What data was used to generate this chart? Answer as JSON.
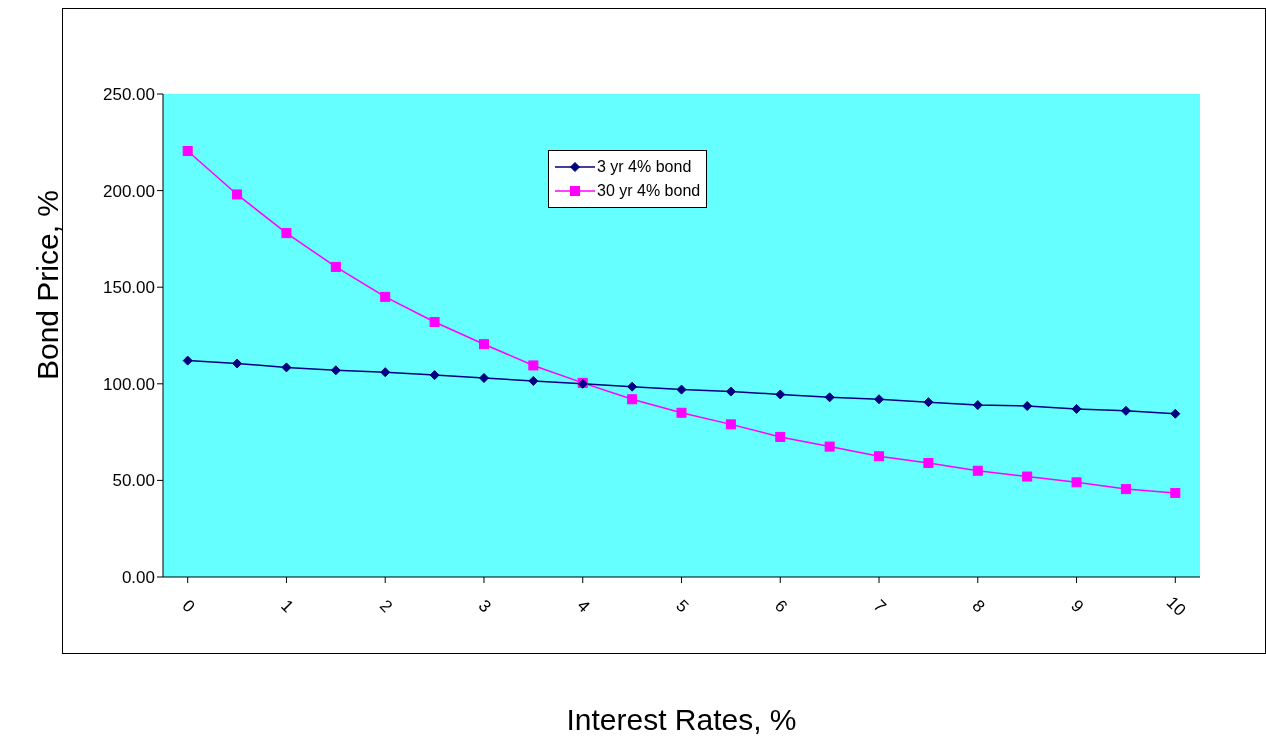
{
  "chart_data": {
    "type": "line",
    "xlabel": "Interest Rates, %",
    "ylabel": "Bond Price, %",
    "x": [
      0,
      0.5,
      1,
      1.5,
      2,
      2.5,
      3,
      3.5,
      4,
      4.5,
      5,
      5.5,
      6,
      6.5,
      7,
      7.5,
      8,
      8.5,
      9,
      9.5,
      10
    ],
    "series": [
      {
        "name": "3 yr 4% bond",
        "color": "#000080",
        "marker": "diamond",
        "values": [
          112,
          110.5,
          108.5,
          107,
          106,
          104.5,
          103,
          101.5,
          100,
          98.5,
          97,
          96,
          94.5,
          93,
          92,
          90.5,
          89,
          88.5,
          87,
          86,
          84.5
        ]
      },
      {
        "name": "30 yr 4% bond",
        "color": "#ff00ff",
        "marker": "square",
        "values": [
          220.5,
          198,
          178,
          160.5,
          145,
          132,
          120.5,
          109.5,
          100.5,
          92,
          85,
          79,
          72.5,
          67.5,
          62.5,
          59,
          55,
          52,
          49,
          45.5,
          43.5
        ]
      }
    ],
    "xlim": [
      -0.25,
      10.25
    ],
    "xticks": [
      0,
      1,
      2,
      3,
      4,
      5,
      6,
      7,
      8,
      9,
      10
    ],
    "ylim": [
      0,
      250
    ],
    "yticks": [
      {
        "value": 0,
        "label": "0.00"
      },
      {
        "value": 50,
        "label": "50.00"
      },
      {
        "value": 100,
        "label": "100.00"
      },
      {
        "value": 150,
        "label": "150.00"
      },
      {
        "value": 200,
        "label": "200.00"
      },
      {
        "value": 250,
        "label": "250.00"
      }
    ],
    "grid": false,
    "legend": "top",
    "line_style": "solid"
  }
}
